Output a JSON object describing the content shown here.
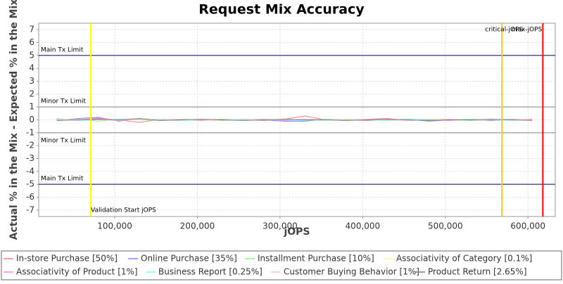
{
  "chart_data": {
    "type": "line",
    "title": "Request Mix Accuracy",
    "x_label": "jOPS",
    "y_label": "Actual % in the Mix - Expected % in the Mix",
    "x": [
      30000,
      55000,
      80000,
      105000,
      130000,
      155000,
      180000,
      205000,
      230000,
      255000,
      280000,
      305000,
      330000,
      355000,
      380000,
      405000,
      430000,
      455000,
      480000,
      505000,
      530000,
      555000,
      580000,
      605000
    ],
    "series": [
      {
        "name": "In-store Purchase [50%]",
        "color": "#ff7f7f",
        "values": [
          0.05,
          -0.05,
          0.1,
          0,
          -0.2,
          0.05,
          0,
          -0.05,
          0.05,
          0,
          -0.05,
          0.05,
          0.3,
          0,
          -0.05,
          0.05,
          0.1,
          -0.05,
          0,
          0.05,
          -0.05,
          0,
          0.05,
          0
        ]
      },
      {
        "name": "Online Purchase [35%]",
        "color": "#7f7fff",
        "values": [
          -0.05,
          0.1,
          0.2,
          -0.1,
          0.1,
          -0.05,
          0,
          0.05,
          -0.05,
          0.05,
          0,
          -0.1,
          -0.1,
          0.05,
          0,
          -0.05,
          0,
          0.05,
          -0.1,
          0,
          0.05,
          -0.05,
          0,
          0.05
        ]
      },
      {
        "name": "Installment Purchase [10%]",
        "color": "#7fff7f",
        "values": [
          0,
          0.05,
          -0.1,
          0.05,
          0,
          -0.05,
          0.05,
          0,
          0.05,
          -0.05,
          0,
          0.05,
          0,
          -0.05,
          0.05,
          0,
          -0.05,
          0,
          0.05,
          0,
          -0.05,
          0.05,
          0,
          0
        ]
      },
      {
        "name": "Associativity of Category [0.1%]",
        "color": "#ffff7f",
        "values": [
          0,
          0.02,
          0,
          -0.02,
          0,
          0.02,
          0,
          0,
          -0.02,
          0,
          0.02,
          0,
          0,
          -0.02,
          0,
          0.02,
          0,
          0,
          -0.02,
          0,
          0.02,
          0,
          0,
          0
        ]
      },
      {
        "name": "Associativity of Product [1%]",
        "color": "#ff7fff",
        "values": [
          0.05,
          0,
          0.15,
          -0.05,
          0.05,
          0,
          -0.05,
          0.05,
          0,
          0,
          0.05,
          -0.05,
          0,
          0.05,
          0,
          -0.05,
          0.05,
          0,
          0,
          -0.05,
          0.05,
          0,
          0,
          0.05
        ]
      },
      {
        "name": "Business Report [0.25%]",
        "color": "#7fffff",
        "values": [
          0.1,
          -0.05,
          0,
          0.05,
          0,
          0.05,
          -0.05,
          0,
          0,
          0.05,
          0,
          0,
          -0.05,
          0.05,
          0,
          0,
          -0.05,
          0.05,
          0,
          0,
          0.05,
          0,
          -0.05,
          0
        ]
      },
      {
        "name": "Customer Buying Behavior [1%]",
        "color": "#ffbfbf",
        "values": [
          0,
          0.05,
          0,
          -0.05,
          0.05,
          0,
          0.05,
          0,
          -0.05,
          0,
          0.05,
          0,
          0.05,
          0,
          0,
          0.05,
          0,
          -0.05,
          0,
          0.05,
          0,
          0,
          0.05,
          0
        ]
      },
      {
        "name": "Product Return [2.65%]",
        "color": "#808080",
        "values": [
          -0.05,
          0,
          0.05,
          0,
          0.1,
          -0.05,
          0,
          0.05,
          0,
          -0.05,
          0,
          0.05,
          0,
          0,
          -0.05,
          0,
          0.05,
          0,
          -0.05,
          0,
          0,
          0.05,
          0,
          -0.05
        ]
      }
    ],
    "xlim": [
      8000,
      633000
    ],
    "xticks": [
      {
        "value": 100000,
        "label": "100,000"
      },
      {
        "value": 200000,
        "label": "200,000"
      },
      {
        "value": 300000,
        "label": "300,000"
      },
      {
        "value": 400000,
        "label": "400,000"
      },
      {
        "value": 500000,
        "label": "500,000"
      },
      {
        "value": 600000,
        "label": "600,000"
      }
    ],
    "ylim": [
      -7.5,
      7.5
    ],
    "yticks": [
      -7,
      -6,
      -5,
      -4,
      -3,
      -2,
      -1,
      0,
      1,
      2,
      3,
      4,
      5,
      6,
      7
    ],
    "grid": true,
    "y_lines": [
      {
        "value": 5,
        "label": "Main Tx Limit",
        "color": "#000066"
      },
      {
        "value": 1,
        "label": "Minor Tx Limit",
        "color": "#808080"
      },
      {
        "value": -1,
        "label": "Minor Tx Limit",
        "color": "#808080"
      },
      {
        "value": -5,
        "label": "Main Tx Limit",
        "color": "#000066"
      }
    ],
    "x_lines": [
      {
        "value": 71000,
        "label": "Validation Start jOPS",
        "color": "#ffff00"
      },
      {
        "value": 568500,
        "label": "critical-jOPS",
        "color": "#ffc800"
      },
      {
        "value": 618000,
        "label": "max-jOPS",
        "color": "#ff0000"
      }
    ]
  }
}
